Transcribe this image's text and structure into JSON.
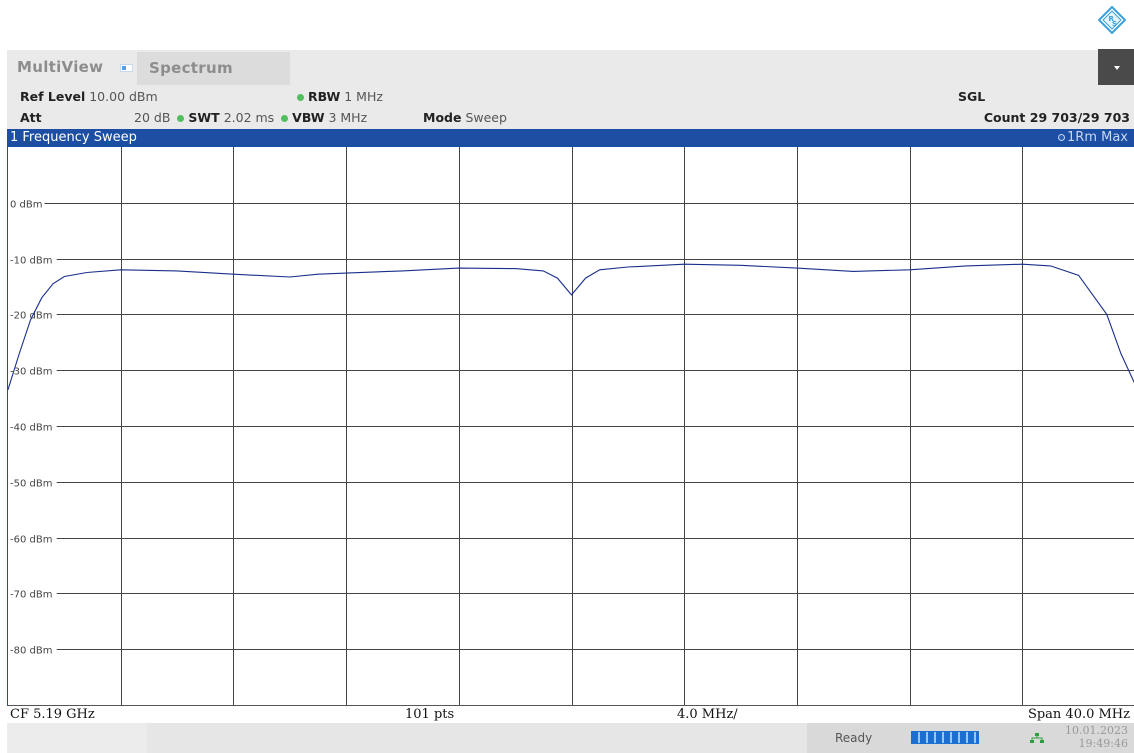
{
  "tabs": {
    "multiview_label": "MultiView",
    "spectrum_label": "Spectrum"
  },
  "settings": {
    "ref_level_key": "Ref Level",
    "ref_level_value": "10.00 dBm",
    "att_key": "Att",
    "att_value": "20 dB",
    "swt_key": "SWT",
    "swt_value": "2.02 ms",
    "rbw_key": "RBW",
    "rbw_value": "1 MHz",
    "vbw_key": "VBW",
    "vbw_value": "3 MHz",
    "mode_key": "Mode",
    "mode_value": "Sweep",
    "sgl": "SGL",
    "count": "Count 29 703/29 703"
  },
  "window": {
    "title": "1 Frequency Sweep",
    "trace_label": "1Rm Max"
  },
  "chart_data": {
    "type": "line",
    "y_tick_labels": [
      "0 dBm",
      "-10 dBm",
      "-20 dBm",
      "-30 dBm",
      "-40 dBm",
      "-50 dBm",
      "-60 dBm",
      "-70 dBm",
      "-80 dBm"
    ],
    "ylim": [
      -90,
      10
    ],
    "xlim": [
      -20,
      20
    ],
    "x_unit": "MHz offset from CF",
    "grid": true,
    "series": [
      {
        "color": "#1a2f8c",
        "x": [
          -20,
          -19.6,
          -19.2,
          -18.8,
          -18.4,
          -18,
          -17.2,
          -16,
          -14,
          -12,
          -10,
          -9,
          -8,
          -6,
          -4,
          -2,
          -1,
          -0.5,
          0,
          0.5,
          1,
          2,
          4,
          6,
          8,
          10,
          12,
          14,
          16,
          17,
          18,
          19,
          19.5,
          20
        ],
        "y": [
          -33.5,
          -27,
          -21,
          -17,
          -14.5,
          -13.2,
          -12.5,
          -12,
          -12.2,
          -12.8,
          -13.3,
          -12.8,
          -12.6,
          -12.2,
          -11.7,
          -11.8,
          -12.2,
          -13.5,
          -16.5,
          -13.5,
          -12,
          -11.5,
          -11,
          -11.2,
          -11.7,
          -12.3,
          -12,
          -11.3,
          -11,
          -11.3,
          -13,
          -20,
          -27,
          -32.5
        ]
      }
    ]
  },
  "footer": {
    "cf": "CF 5.19 GHz",
    "pts": "101 pts",
    "div": "4.0 MHz/",
    "span": "Span 40.0 MHz"
  },
  "status": {
    "ready": "Ready",
    "date": "10.01.2023",
    "time": "19:49:46"
  },
  "colors": {
    "header_blue": "#1c4ea3",
    "trace": "#1a2f8c",
    "grid": "#444444",
    "active_dot": "#4fbf5f",
    "progress": "#1c6fd0"
  }
}
